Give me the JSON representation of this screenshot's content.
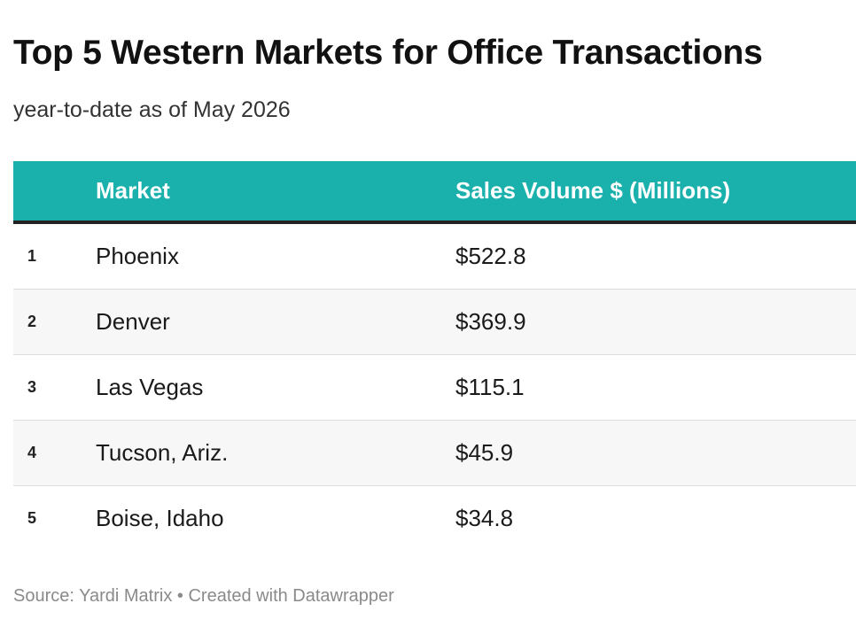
{
  "title": "Top 5 Western Markets for Office Transactions",
  "subtitle": "year-to-date as of May 2026",
  "footer": {
    "source": "Source: Yardi Matrix",
    "separator": "•",
    "credit": "Created with Datawrapper"
  },
  "colors": {
    "header_background": "#1ab1ad",
    "header_text": "#ffffff",
    "header_rule": "#222222",
    "row_alt_background": "#f7f7f7"
  },
  "chart_data": {
    "type": "table",
    "title": "Top 5 Western Markets for Office Transactions",
    "subtitle": "year-to-date as of May 2026",
    "columns": [
      "",
      "Market",
      "Sales Volume $ (Millions)"
    ],
    "rows": [
      {
        "rank": "1",
        "market": "Phoenix",
        "sales": "$522.8"
      },
      {
        "rank": "2",
        "market": "Denver",
        "sales": "$369.9"
      },
      {
        "rank": "3",
        "market": "Las Vegas",
        "sales": "$115.1"
      },
      {
        "rank": "4",
        "market": "Tucson, Ariz.",
        "sales": "$45.9"
      },
      {
        "rank": "5",
        "market": "Boise, Idaho",
        "sales": "$34.8"
      }
    ],
    "values": [
      522.8,
      369.9,
      115.1,
      45.9,
      34.8
    ]
  }
}
